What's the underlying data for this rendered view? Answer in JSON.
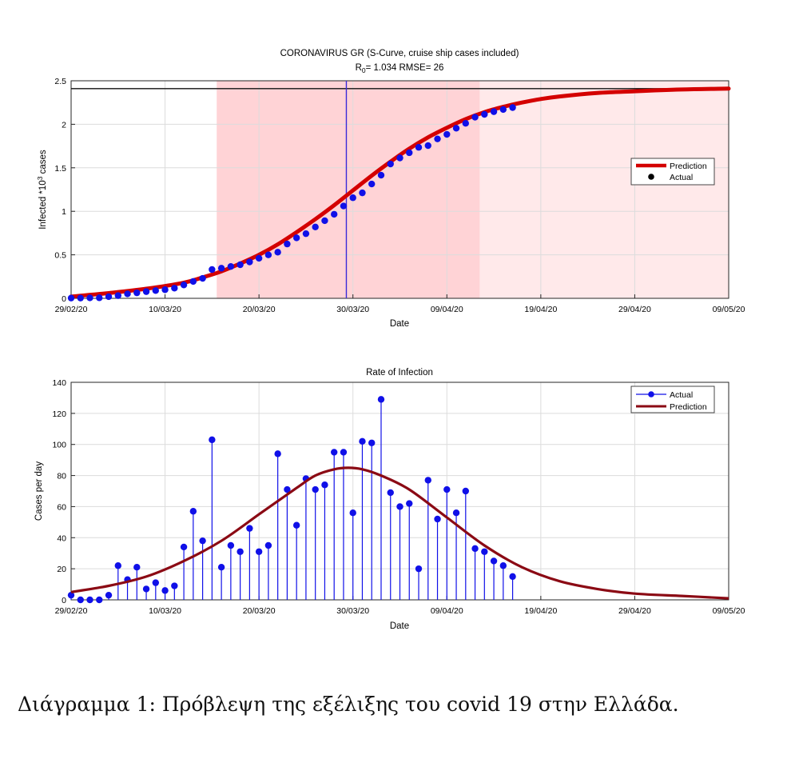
{
  "caption": "Διάγραμμα 1: Πρόβλεψη της εξέλιξης του covid 19 στην Ελλάδα.",
  "colors": {
    "actual": "#1010e8",
    "prediction_top": "#d40000",
    "prediction_bottom": "#8b0a14",
    "shade_strong": "#ffd3d6",
    "shade_light": "#ffe9ea",
    "vline": "#3a2ad8"
  },
  "chart_data": [
    {
      "type": "line",
      "title": "CORONAVIRUS GR (S-Curve,  cruise ship cases included)",
      "subtitle": {
        "r_label": "R",
        "r_sub": "0",
        "r_rest": "=  1.034  RMSE=  26"
      },
      "xlabel": "Date",
      "ylabel": {
        "main": "Infected *10",
        "sup": "3",
        "tail": " cases"
      },
      "xlim": [
        0,
        70
      ],
      "ylim": [
        0,
        2.5
      ],
      "xticks": [
        0,
        10,
        20,
        30,
        40,
        50,
        60,
        70
      ],
      "xtick_labels": [
        "29/02/20",
        "10/03/20",
        "20/03/20",
        "30/03/20",
        "09/04/20",
        "19/04/20",
        "29/04/20",
        "09/05/20"
      ],
      "yticks": [
        0,
        0.5,
        1,
        1.5,
        2,
        2.5
      ],
      "ytick_labels": [
        "0",
        "0.5",
        "1",
        "1.5",
        "2",
        "2.5"
      ],
      "grid": true,
      "legend_position": "right",
      "asymptote": 2.41,
      "vertical_line_x": 29.3,
      "shaded_regions": [
        {
          "from": 15.5,
          "to": 43.5,
          "shade": "strong"
        },
        {
          "from": 43.5,
          "to": 70,
          "shade": "light"
        }
      ],
      "series": [
        {
          "name": "Prediction",
          "kind": "line",
          "x": [
            0,
            4,
            8,
            12,
            14,
            16,
            18,
            20,
            22,
            24,
            26,
            28,
            30,
            32,
            34,
            36,
            38,
            40,
            42,
            44,
            46,
            48,
            50,
            52,
            56,
            60,
            65,
            70
          ],
          "values": [
            0.02,
            0.06,
            0.11,
            0.18,
            0.24,
            0.31,
            0.4,
            0.5,
            0.62,
            0.76,
            0.91,
            1.07,
            1.24,
            1.41,
            1.57,
            1.72,
            1.85,
            1.96,
            2.06,
            2.14,
            2.2,
            2.25,
            2.29,
            2.32,
            2.36,
            2.38,
            2.4,
            2.41
          ]
        },
        {
          "name": "Actual",
          "kind": "scatter",
          "x": [
            0,
            1,
            2,
            3,
            4,
            5,
            6,
            7,
            8,
            9,
            10,
            11,
            12,
            13,
            14,
            15,
            16,
            17,
            18,
            19,
            20,
            21,
            22,
            23,
            24,
            25,
            26,
            27,
            28,
            29,
            30,
            31,
            32,
            33,
            34,
            35,
            36,
            37,
            38,
            39,
            40,
            41,
            42,
            43,
            44,
            45,
            46,
            47
          ],
          "values": [
            0.003,
            0.003,
            0.005,
            0.006,
            0.019,
            0.031,
            0.051,
            0.063,
            0.077,
            0.089,
            0.099,
            0.117,
            0.154,
            0.194,
            0.229,
            0.331,
            0.346,
            0.366,
            0.386,
            0.418,
            0.46,
            0.499,
            0.53,
            0.624,
            0.695,
            0.743,
            0.82,
            0.892,
            0.966,
            1.061,
            1.156,
            1.212,
            1.314,
            1.415,
            1.544,
            1.613,
            1.673,
            1.735,
            1.755,
            1.832,
            1.884,
            1.955,
            2.011,
            2.081,
            2.114,
            2.145,
            2.17,
            2.192
          ]
        }
      ]
    },
    {
      "type": "line",
      "title": "Rate of Infection",
      "xlabel": "Date",
      "ylabel": "Cases per day",
      "xlim": [
        0,
        70
      ],
      "ylim": [
        0,
        140
      ],
      "xticks": [
        0,
        10,
        20,
        30,
        40,
        50,
        60,
        70
      ],
      "xtick_labels": [
        "29/02/20",
        "10/03/20",
        "20/03/20",
        "30/03/20",
        "09/04/20",
        "19/04/20",
        "29/04/20",
        "09/05/20"
      ],
      "yticks": [
        0,
        20,
        40,
        60,
        80,
        100,
        120,
        140
      ],
      "ytick_labels": [
        "0",
        "20",
        "40",
        "60",
        "80",
        "100",
        "120",
        "140"
      ],
      "grid": true,
      "legend_position": "top-right",
      "series": [
        {
          "name": "Actual",
          "kind": "stem",
          "x": [
            0,
            1,
            2,
            3,
            4,
            5,
            6,
            7,
            8,
            9,
            10,
            11,
            12,
            13,
            14,
            15,
            16,
            17,
            18,
            19,
            20,
            21,
            22,
            23,
            24,
            25,
            26,
            27,
            28,
            29,
            30,
            31,
            32,
            33,
            34,
            35,
            36,
            37,
            38,
            39,
            40,
            41,
            42,
            43,
            44,
            45,
            46,
            47
          ],
          "values": [
            3,
            0,
            0,
            0,
            3,
            22,
            13,
            21,
            7,
            11,
            6,
            9,
            34,
            57,
            38,
            103,
            21,
            35,
            31,
            46,
            31,
            35,
            94,
            71,
            48,
            78,
            71,
            74,
            95,
            95,
            56,
            102,
            101,
            129,
            69,
            60,
            62,
            20,
            77,
            52,
            71,
            56,
            70,
            33,
            31,
            25,
            22,
            15
          ]
        },
        {
          "name": "Prediction",
          "kind": "line",
          "x": [
            0,
            4,
            8,
            12,
            16,
            20,
            24,
            26,
            28,
            29.5,
            31,
            33,
            36,
            40,
            44,
            48,
            52,
            56,
            60,
            65,
            70
          ],
          "values": [
            5,
            9,
            15,
            25,
            38,
            55,
            72,
            80,
            84,
            85,
            84,
            80,
            71,
            53,
            35,
            21,
            12,
            7,
            4,
            2.5,
            1
          ]
        }
      ]
    }
  ]
}
